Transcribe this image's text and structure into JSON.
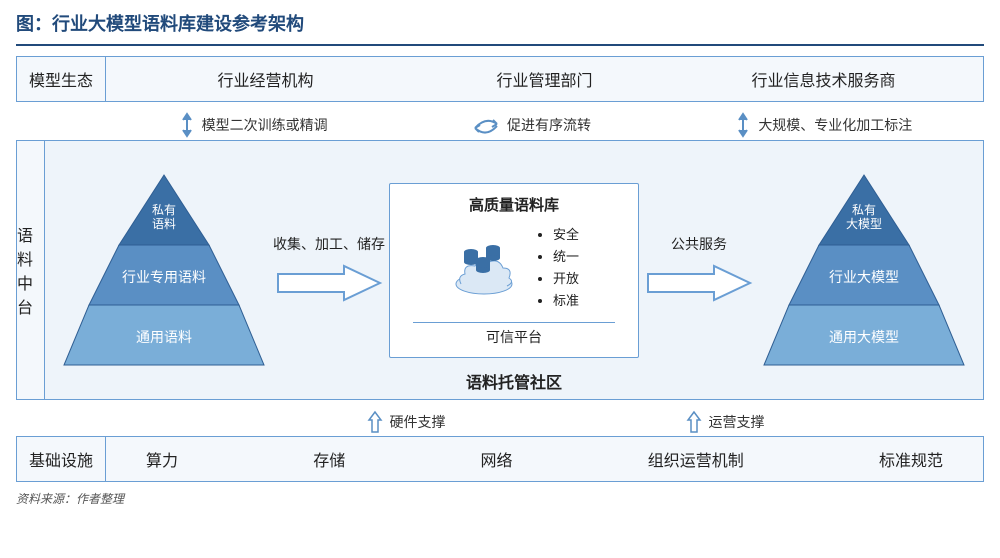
{
  "title": "图：行业大模型语料库建设参考架构",
  "source": "资料来源：作者整理",
  "colors": {
    "border": "#6a9ed4",
    "bgLight": "#f4f8fc",
    "bgMid": "#eef4fa",
    "pyrTop": "#3a6fa5",
    "pyrMid": "#5a8fc4",
    "pyrBot": "#7aaed8",
    "pyrStroke": "#2f5e93",
    "titleColor": "#214a7b"
  },
  "layers": {
    "top": {
      "label": "模型生态",
      "items": [
        "行业经营机构",
        "行业管理部门",
        "行业信息技术服务商"
      ]
    },
    "topArrows": [
      {
        "icon": "bidir",
        "text": "模型二次训练或精调"
      },
      {
        "icon": "swirl",
        "text": "促进有序流转"
      },
      {
        "icon": "bidir",
        "text": "大规模、专业化加工标注"
      }
    ],
    "mid": {
      "label": "语料中台",
      "leftPyramid": [
        "私有\n语料",
        "行业专用语料",
        "通用语料"
      ],
      "leftArrow": "收集、加工、储存",
      "center": {
        "header": "高质量语料库",
        "bullets": [
          "安全",
          "统一",
          "开放",
          "标准"
        ],
        "footer": "可信平台"
      },
      "rightArrow": "公共服务",
      "rightPyramid": [
        "私有\n大模型",
        "行业大模型",
        "通用大模型"
      ],
      "community": "语料托管社区"
    },
    "botArrows": [
      {
        "icon": "up",
        "text": "硬件支撑"
      },
      {
        "icon": "up",
        "text": "运营支撑"
      }
    ],
    "bottom": {
      "label": "基础设施",
      "items": [
        "算力",
        "存储",
        "网络",
        "组织运营机制",
        "标准规范"
      ]
    }
  }
}
